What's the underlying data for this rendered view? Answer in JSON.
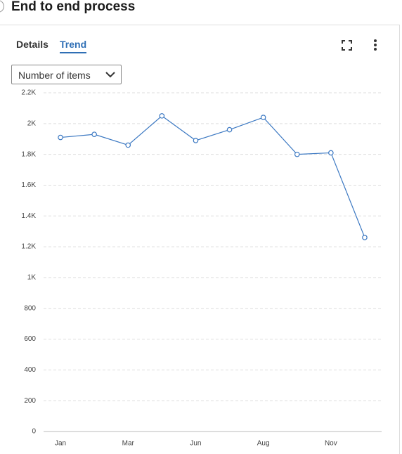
{
  "header": {
    "title": "End to end process"
  },
  "tabs": [
    "Details",
    "Trend"
  ],
  "dropdown": "Number of items",
  "chart_data": {
    "type": "line",
    "categories": [
      "Jan",
      null,
      "Mar",
      null,
      "Jun",
      null,
      "Aug",
      null,
      "Nov",
      null
    ],
    "values": [
      1910,
      1930,
      1860,
      2050,
      1890,
      1960,
      2040,
      1800,
      1810,
      1260
    ],
    "color": "#3b78c2",
    "ylim": [
      0,
      2200
    ],
    "yticks": [
      0,
      200,
      400,
      600,
      800,
      {
        "value": 1000,
        "label": "1K"
      },
      {
        "value": 1200,
        "label": "1.2K"
      },
      {
        "value": 1400,
        "label": "1.4K"
      },
      {
        "value": 1600,
        "label": "1.6K"
      },
      {
        "value": 1800,
        "label": "1.8K"
      },
      {
        "value": 2000,
        "label": "2K"
      },
      {
        "value": 2200,
        "label": "2.2K"
      }
    ],
    "grid": true
  }
}
